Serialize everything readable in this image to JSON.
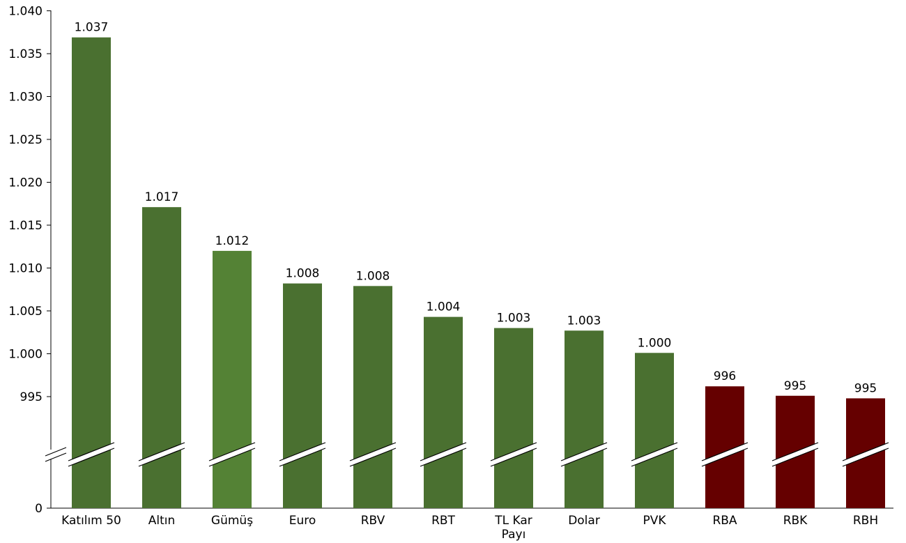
{
  "chart_data": {
    "type": "bar",
    "categories": [
      "Katılım 50",
      "Altın",
      "Gümüş",
      "Euro",
      "RBV",
      "RBT",
      "TL Kar Payı",
      "Dolar",
      "PVK",
      "RBA",
      "RBK",
      "RBH"
    ],
    "category_lines": [
      [
        "Katılım 50"
      ],
      [
        "Altın"
      ],
      [
        "Gümüş"
      ],
      [
        "Euro"
      ],
      [
        "RBV"
      ],
      [
        "RBT"
      ],
      [
        "TL Kar",
        "Payı"
      ],
      [
        "Dolar"
      ],
      [
        "PVK"
      ],
      [
        "RBA"
      ],
      [
        "RBK"
      ],
      [
        "RBH"
      ]
    ],
    "values": [
      1036.9,
      1017.1,
      1012.0,
      1008.2,
      1007.9,
      1004.3,
      1003.0,
      1002.7,
      1000.1,
      996.2,
      995.1,
      994.8
    ],
    "data_labels": [
      "1.037",
      "1.017",
      "1.012",
      "1.008",
      "1.008",
      "1.004",
      "1.003",
      "1.003",
      "1.000",
      "996",
      "995",
      "995"
    ],
    "bar_colors": [
      "#4a7030",
      "#4a7030",
      "#548235",
      "#4a7030",
      "#4a7030",
      "#4a7030",
      "#4a7030",
      "#4a7030",
      "#4a7030",
      "#650000",
      "#650000",
      "#650000"
    ],
    "y_ticks": [
      {
        "value": 0,
        "label": "0"
      },
      {
        "value": 995,
        "label": "995"
      },
      {
        "value": 1000,
        "label": "1.000"
      },
      {
        "value": 1005,
        "label": "1.005"
      },
      {
        "value": 1010,
        "label": "1.010"
      },
      {
        "value": 1015,
        "label": "1.015"
      },
      {
        "value": 1020,
        "label": "1.020"
      },
      {
        "value": 1025,
        "label": "1.025"
      },
      {
        "value": 1030,
        "label": "1.030"
      },
      {
        "value": 1035,
        "label": "1.035"
      },
      {
        "value": 1040,
        "label": "1.040"
      }
    ],
    "ylim": [
      0,
      1040
    ],
    "axis_break": true,
    "grid": false,
    "title": "",
    "xlabel": "",
    "ylabel": ""
  }
}
